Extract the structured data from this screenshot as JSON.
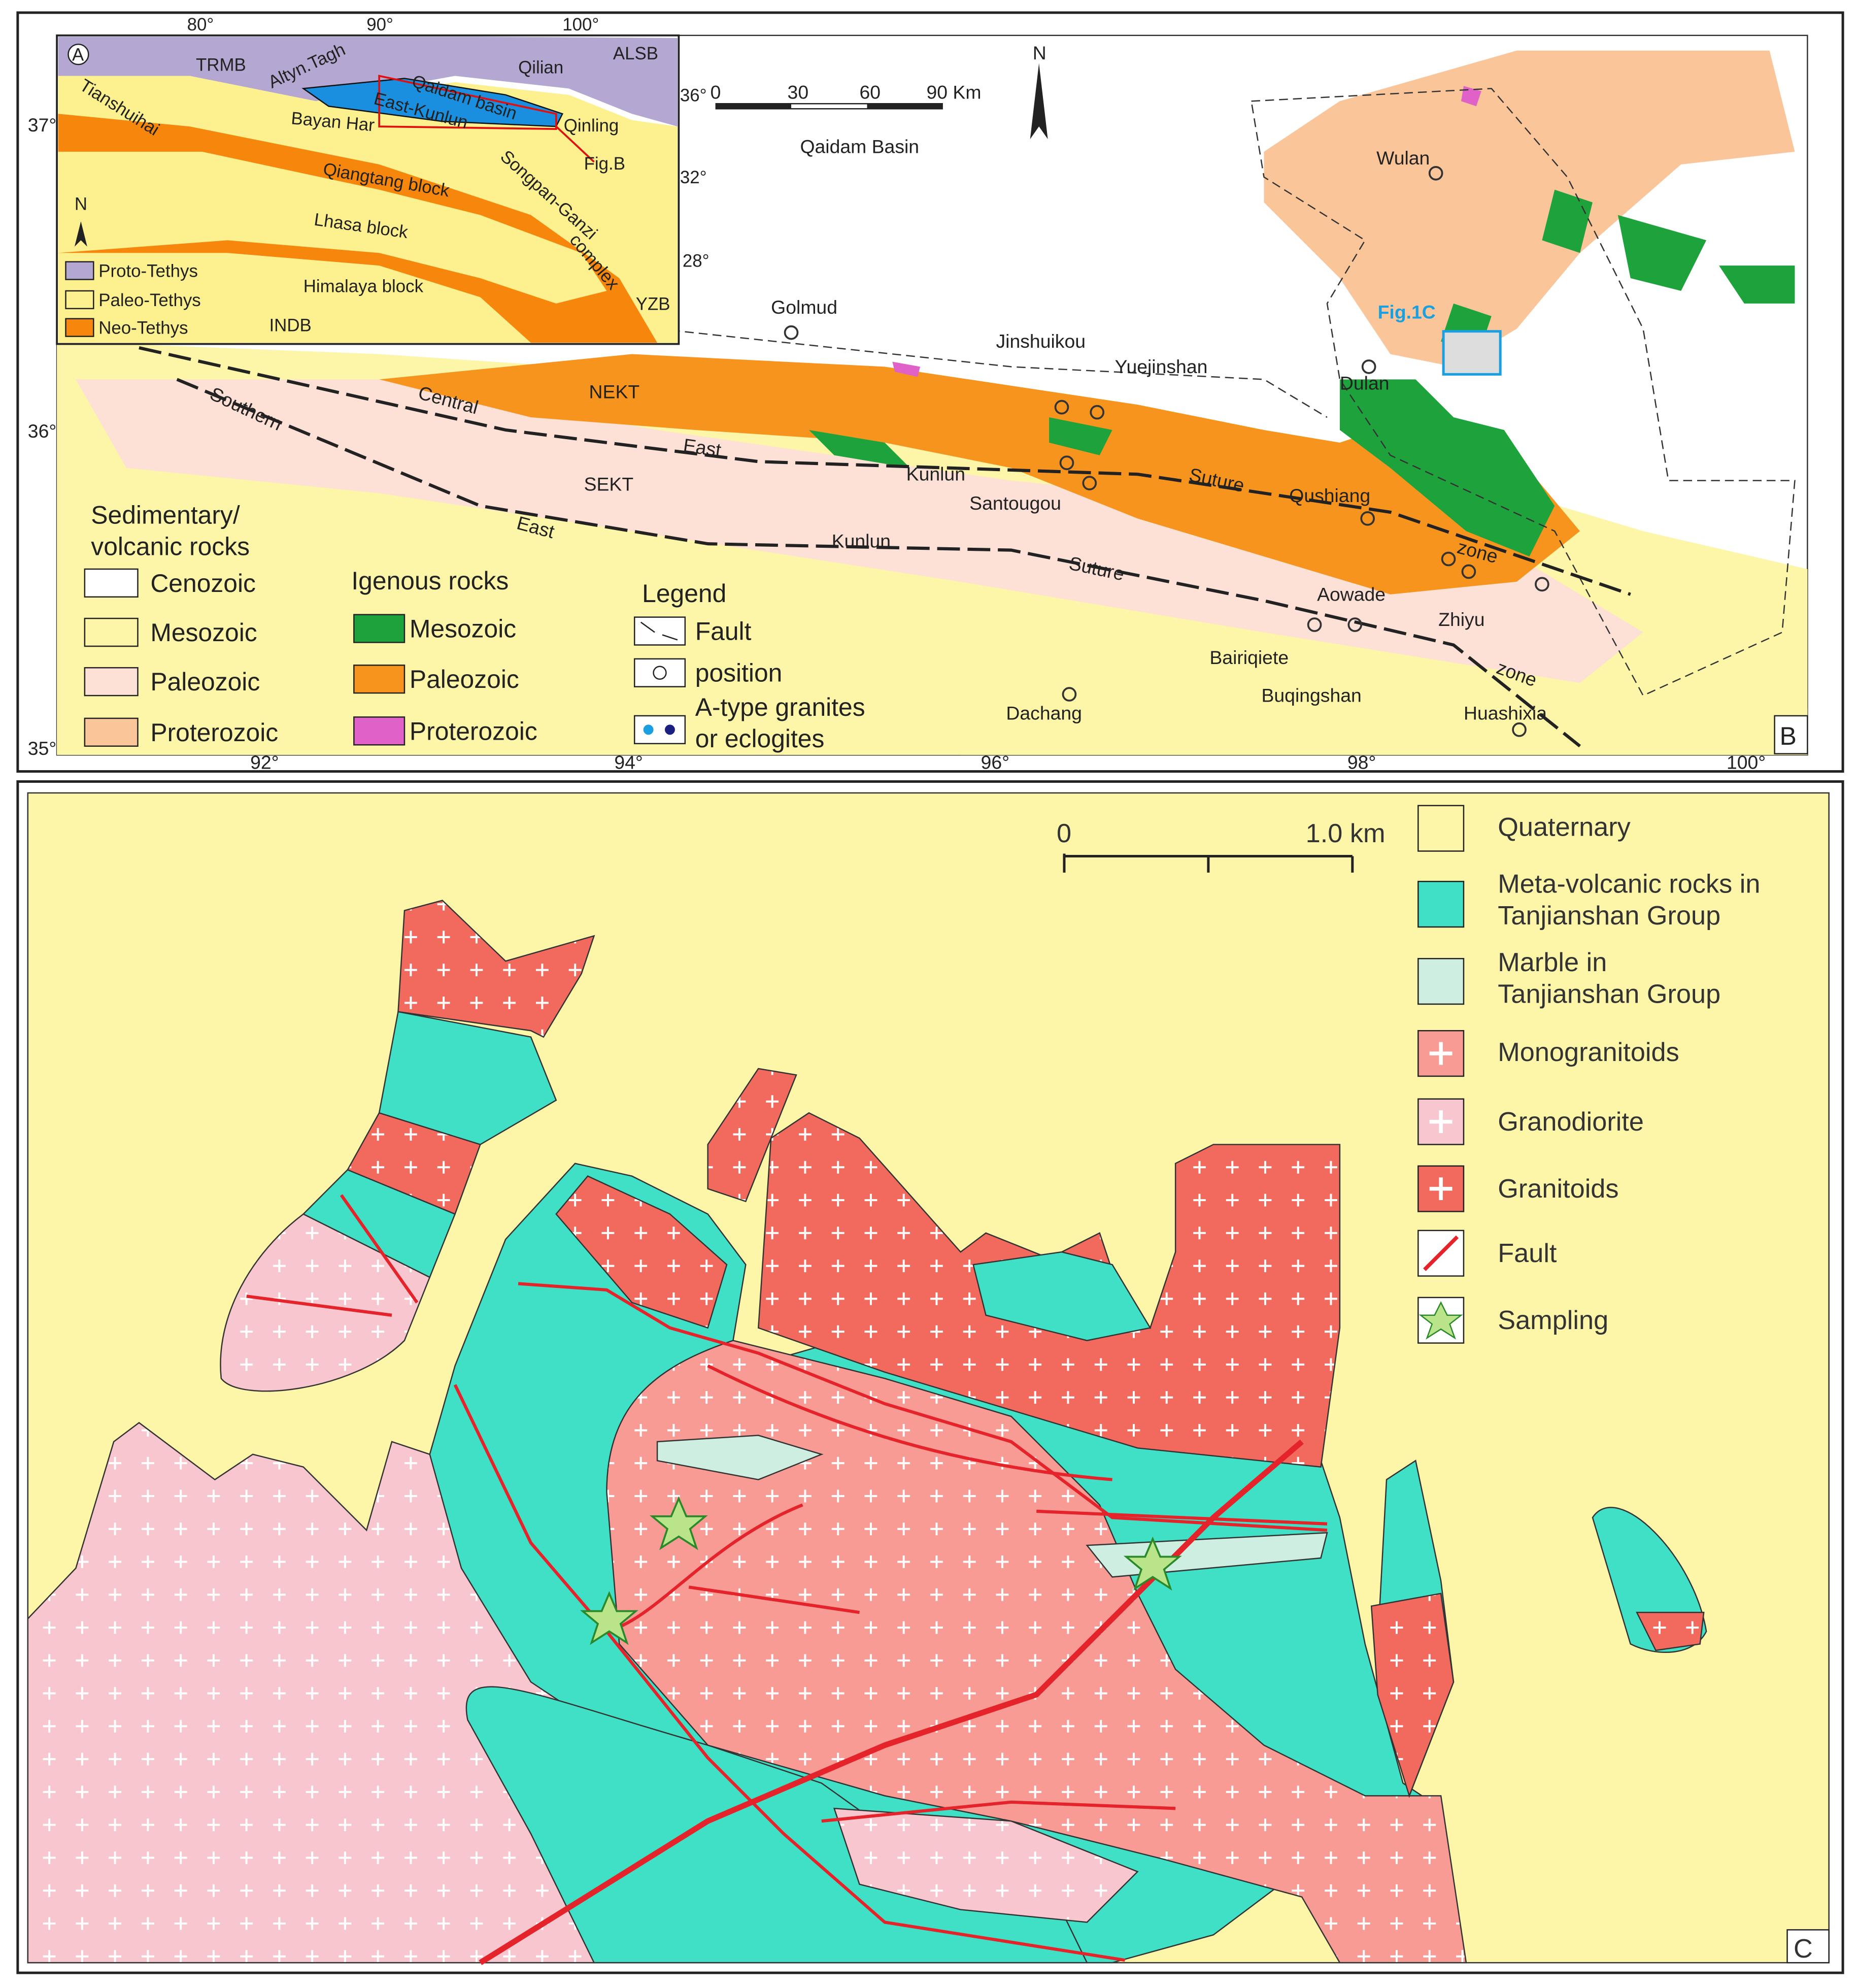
{
  "panel_b": {
    "inset": {
      "labels": [
        "A",
        "TRMB",
        "Altyn.Tagh",
        "Qilian",
        "ALSB",
        "Qaidam basin",
        "East-Kunlun",
        "Qinling",
        "Tianshuihai",
        "Bayan Har",
        "Fig.B",
        "Qiangtang block",
        "Songpan-Ganzi",
        "complex",
        "Lhasa block",
        "Himalaya block",
        "INDB",
        "YZB",
        "N"
      ],
      "lon_ticks": [
        "80°",
        "90°",
        "100°"
      ],
      "lat_ticks": [
        "36°",
        "32°",
        "28°"
      ],
      "legend": [
        "Proto-Tethys",
        "Paleo-Tethys",
        "Neo-Tethys"
      ]
    },
    "map": {
      "labels": [
        "Qaidam Basin",
        "Golmud",
        "Jinshuikou",
        "Yuejinshan",
        "Wulan",
        "Fig.1C",
        "Dulan",
        "NEKT",
        "SEKT",
        "Southern",
        "Central",
        "East",
        "Kunlun",
        "Suture",
        "Qushiang",
        "zone",
        "Santougou",
        "East",
        "Kunlun",
        "Suture",
        "Aowade",
        "Zhiyu",
        "Bairiqiete",
        "Buqingshan",
        "Dachang",
        "Huashixia",
        "zone",
        "B"
      ],
      "scale": [
        "0",
        "30",
        "60",
        "90 Km"
      ],
      "north": "N",
      "lat_ticks": [
        "37°",
        "36°",
        "35°"
      ],
      "lon_ticks": [
        "92°",
        "94°",
        "96°",
        "98°",
        "100°"
      ]
    },
    "legend": {
      "sedimentary_title": [
        "Sedimentary/",
        "volcanic rocks"
      ],
      "sedimentary": [
        "Cenozoic",
        "Mesozoic",
        "Paleozoic",
        "Proterozoic"
      ],
      "igneous_title": "Igenous rocks",
      "igneous": [
        "Mesozoic",
        "Paleozoic",
        "Proterozoic"
      ],
      "legend_title": "Legend",
      "items": [
        "Fault",
        "position",
        [
          "A-type granites",
          "or eclogites"
        ]
      ]
    }
  },
  "panel_c": {
    "scale": [
      "0",
      "1.0 km"
    ],
    "legend": [
      "Quaternary",
      [
        "Meta-volcanic rocks in",
        "Tanjianshan Group"
      ],
      [
        "Marble in",
        "Tanjianshan Group"
      ],
      "Monogranitoids",
      "Granodiorite",
      "Granitoids",
      "Fault",
      "Sampling"
    ],
    "letter": "C"
  }
}
